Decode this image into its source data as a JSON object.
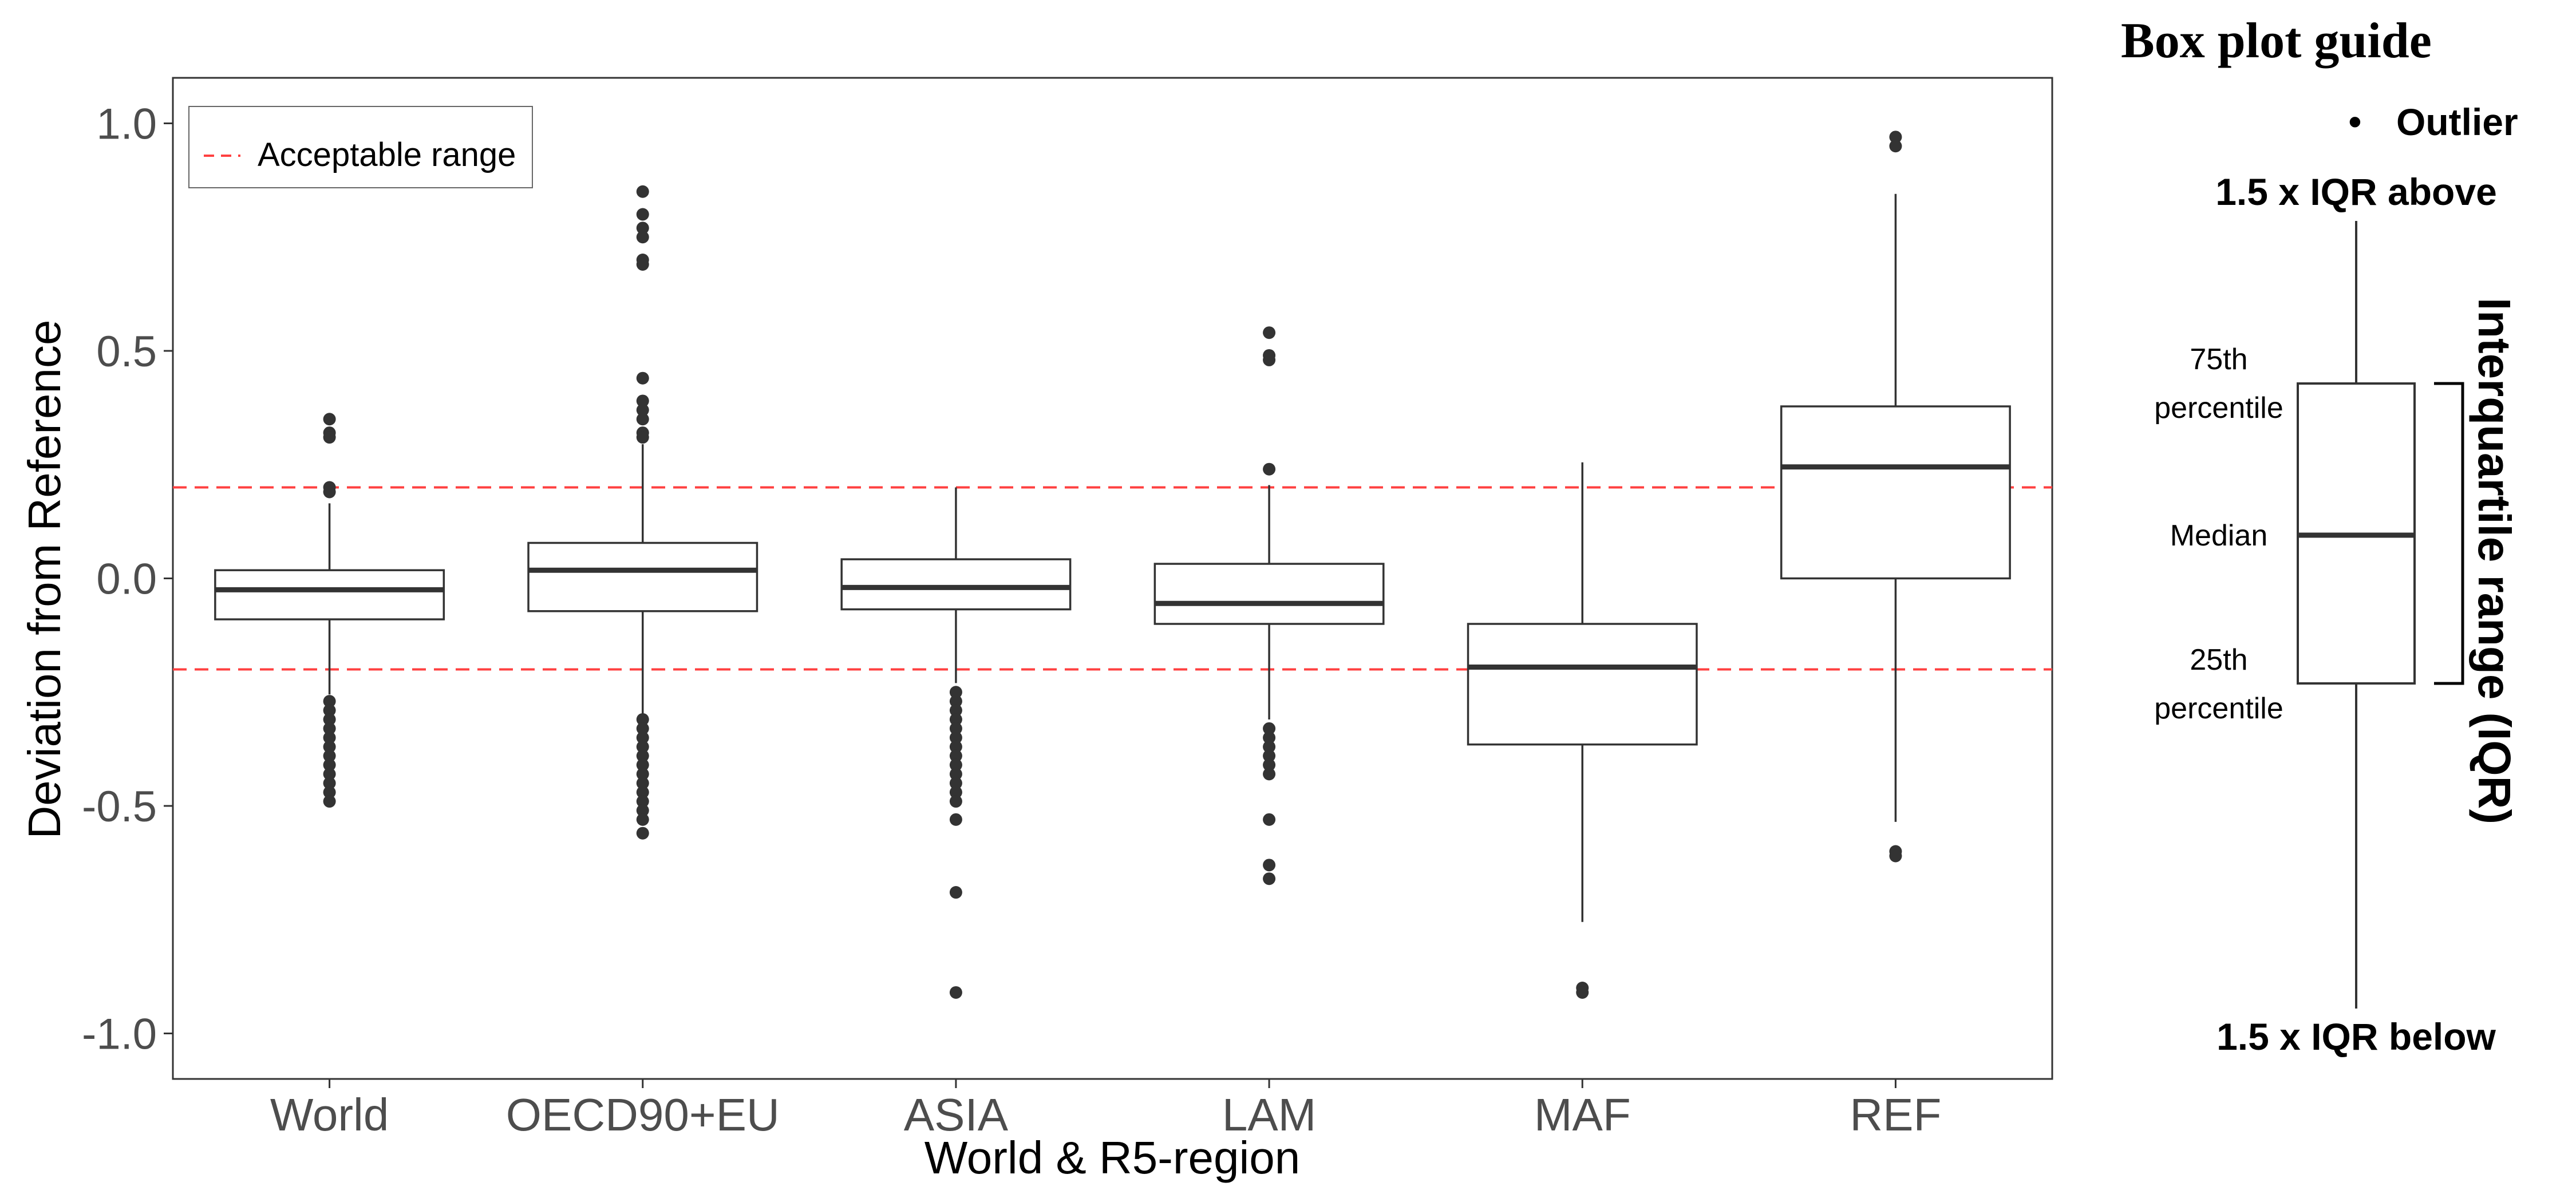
{
  "chart_data": {
    "type": "box",
    "xlabel": "World & R5-region",
    "ylabel": "Deviation from Reference",
    "ylim": [
      -1.1,
      1.1
    ],
    "yticks": [
      {
        "value": -1.0,
        "label": "-1.0"
      },
      {
        "value": -0.5,
        "label": "-0.5"
      },
      {
        "value": 0.0,
        "label": "0.0"
      },
      {
        "value": 0.5,
        "label": "0.5"
      },
      {
        "value": 1.0,
        "label": "1.0"
      }
    ],
    "grid": false,
    "legend": {
      "position": "top-left",
      "entries": [
        "Acceptable range"
      ]
    },
    "reference_lines": [
      {
        "value": 0.2,
        "style": "dashed",
        "color": "#ff4040"
      },
      {
        "value": -0.2,
        "style": "dashed",
        "color": "#ff4040"
      }
    ],
    "categories": [
      "World",
      "OECD90+EU",
      "ASIA",
      "LAM",
      "MAF",
      "REF"
    ],
    "boxes": [
      {
        "category": "World",
        "q1": -0.09,
        "median": -0.025,
        "q3": 0.018,
        "whisker_low": -0.255,
        "whisker_high": 0.165,
        "outliers": [
          0.35,
          0.32,
          0.31,
          0.2,
          0.19,
          -0.27,
          -0.29,
          -0.31,
          -0.33,
          -0.35,
          -0.37,
          -0.39,
          -0.41,
          -0.43,
          -0.45,
          -0.47,
          -0.49
        ]
      },
      {
        "category": "OECD90+EU",
        "q1": -0.072,
        "median": 0.018,
        "q3": 0.078,
        "whisker_low": -0.3,
        "whisker_high": 0.295,
        "outliers": [
          0.85,
          0.8,
          0.77,
          0.75,
          0.7,
          0.69,
          0.44,
          0.39,
          0.37,
          0.35,
          0.32,
          0.31,
          -0.31,
          -0.33,
          -0.35,
          -0.37,
          -0.39,
          -0.41,
          -0.43,
          -0.45,
          -0.47,
          -0.49,
          -0.51,
          -0.53,
          -0.56
        ]
      },
      {
        "category": "ASIA",
        "q1": -0.068,
        "median": -0.02,
        "q3": 0.042,
        "whisker_low": -0.23,
        "whisker_high": 0.2,
        "outliers": [
          -0.25,
          -0.27,
          -0.29,
          -0.31,
          -0.33,
          -0.35,
          -0.37,
          -0.39,
          -0.41,
          -0.43,
          -0.45,
          -0.47,
          -0.49,
          -0.53,
          -0.69,
          -0.91
        ]
      },
      {
        "category": "LAM",
        "q1": -0.1,
        "median": -0.055,
        "q3": 0.032,
        "whisker_low": -0.31,
        "whisker_high": 0.205,
        "outliers": [
          0.54,
          0.49,
          0.48,
          0.24,
          -0.33,
          -0.35,
          -0.37,
          -0.39,
          -0.41,
          -0.43,
          -0.53,
          -0.63,
          -0.66
        ]
      },
      {
        "category": "MAF",
        "q1": -0.365,
        "median": -0.195,
        "q3": -0.1,
        "whisker_low": -0.755,
        "whisker_high": 0.255,
        "outliers": [
          -0.9,
          -0.91
        ]
      },
      {
        "category": "REF",
        "q1": 0.0,
        "median": 0.245,
        "q3": 0.378,
        "whisker_low": -0.535,
        "whisker_high": 0.845,
        "outliers": [
          0.97,
          0.95,
          -0.6,
          -0.61
        ]
      }
    ]
  },
  "guide": {
    "title": "Box plot guide",
    "outlier_label": "Outlier",
    "upper_label": "1.5 x IQR above",
    "lower_label": "1.5 x IQR below",
    "p75_line1": "75th",
    "p75_line2": "percentile",
    "median_label": "Median",
    "p25_line1": "25th",
    "p25_line2": "percentile",
    "iqr_label": "Interquartile range (IQR)",
    "bullet": "•"
  }
}
